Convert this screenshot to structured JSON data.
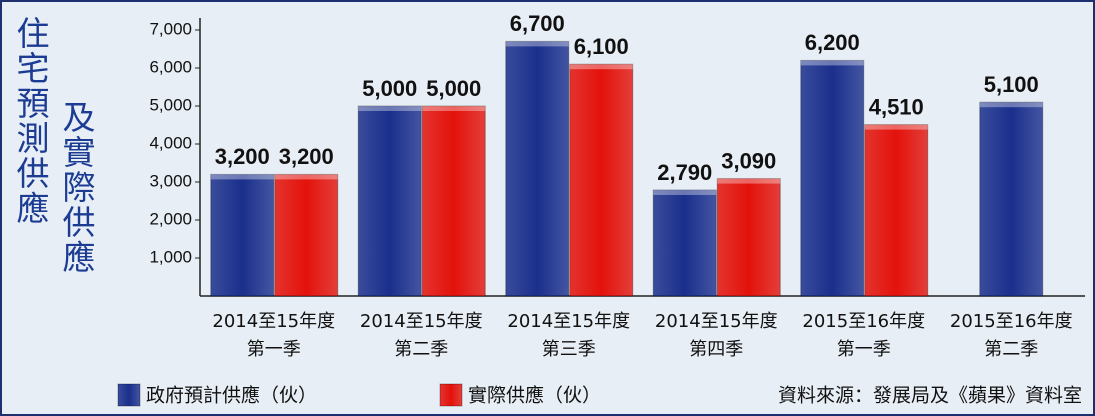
{
  "chart_data": {
    "type": "bar",
    "title": "住宅預測供應",
    "subtitle": "及實際供應",
    "source": "資料來源：發展局及《蘋果》資料室",
    "categories": [
      [
        "2014至15年度",
        "第一季"
      ],
      [
        "2014至15年度",
        "第二季"
      ],
      [
        "2014至15年度",
        "第三季"
      ],
      [
        "2014至15年度",
        "第四季"
      ],
      [
        "2015至16年度",
        "第一季"
      ],
      [
        "2015至16年度",
        "第二季"
      ]
    ],
    "series": [
      {
        "name": "政府預計供應（伙）",
        "color": "#1a2f8c",
        "values": [
          3200,
          5000,
          6700,
          2790,
          6200,
          5100
        ],
        "value_labels": [
          "3,200",
          "5,000",
          "6,700",
          "2,790",
          "6,200",
          "5,100"
        ]
      },
      {
        "name": "實際供應（伙）",
        "color": "#e3120b",
        "values": [
          3200,
          5000,
          6100,
          3090,
          4510,
          null
        ],
        "value_labels": [
          "3,200",
          "5,000",
          "6,100",
          "3,090",
          "4,510",
          null
        ]
      }
    ],
    "ylim": [
      0,
      7000
    ],
    "yticks": [
      {
        "value": 1000,
        "label": "1,000"
      },
      {
        "value": 2000,
        "label": "2,000"
      },
      {
        "value": 3000,
        "label": "3,000"
      },
      {
        "value": 4000,
        "label": "4,000"
      },
      {
        "value": 5000,
        "label": "5,000"
      },
      {
        "value": 6000,
        "label": "6,000"
      },
      {
        "value": 7000,
        "label": "7,000"
      }
    ],
    "grid": false,
    "legend": "bottom"
  }
}
